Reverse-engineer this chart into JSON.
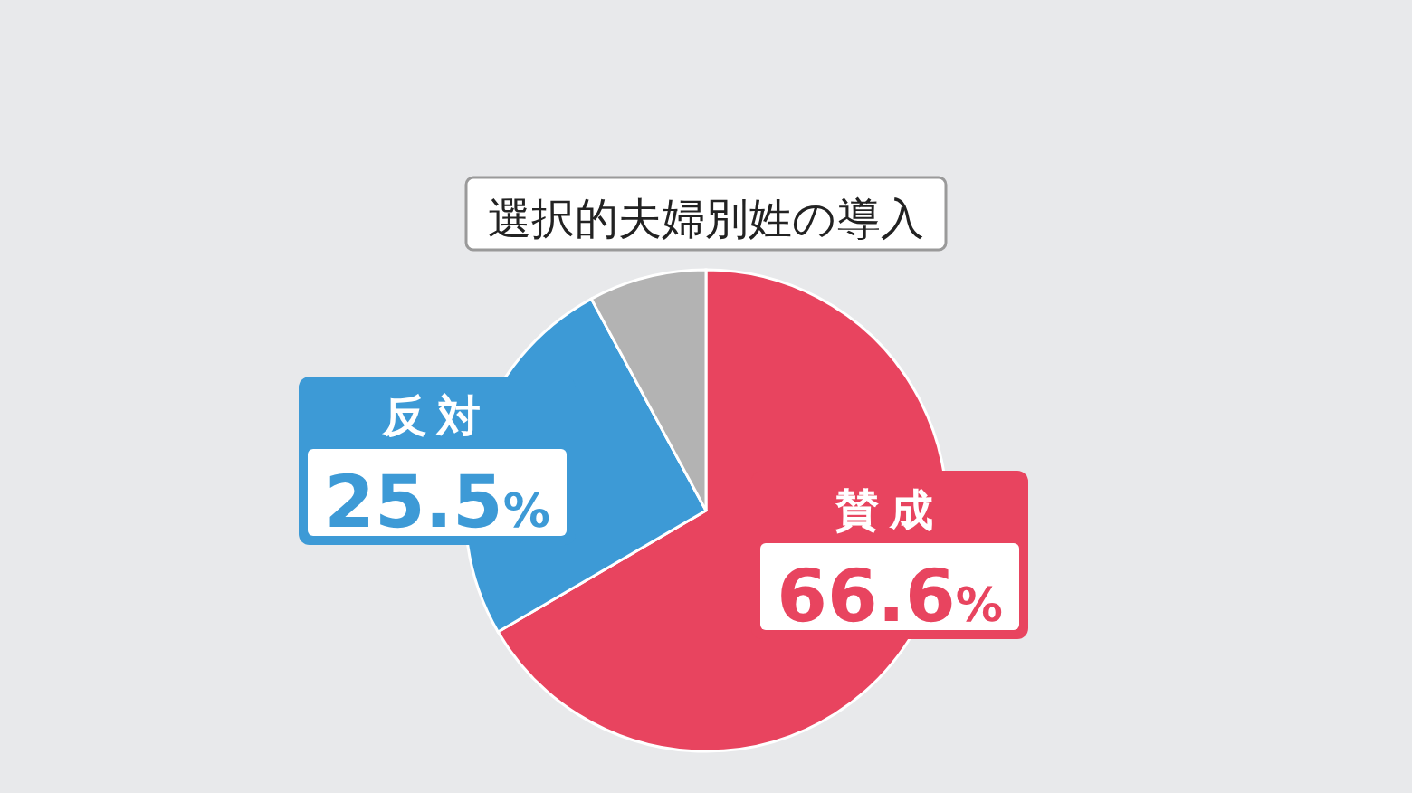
{
  "chart_data": {
    "type": "pie",
    "title": "選択的夫婦別姓の導入",
    "categories": [
      "賛成",
      "反対",
      null
    ],
    "values": [
      66.6,
      25.5,
      7.9
    ],
    "colors": [
      "#e8445f",
      "#3d9ad6",
      "#b3b3b3"
    ],
    "value_labels": [
      "66.6%",
      "25.5%",
      null
    ]
  }
}
